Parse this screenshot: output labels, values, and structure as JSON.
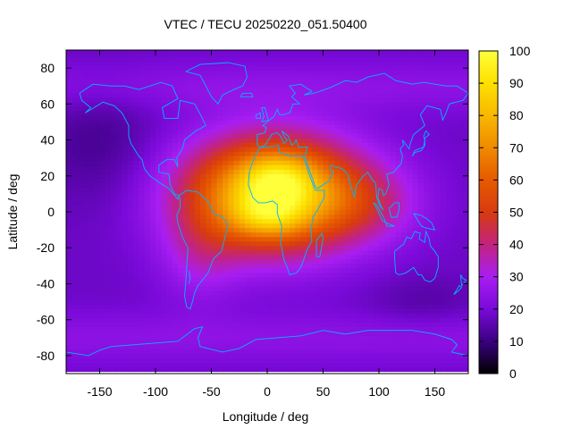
{
  "chart_data": {
    "type": "heatmap",
    "title": "VTEC / TECU 20250220_051.50400",
    "xlabel": "Longitude / deg",
    "ylabel": "Latitude / deg",
    "xlim": [
      -180,
      180
    ],
    "ylim": [
      -90,
      90
    ],
    "x_ticks": [
      -150,
      -100,
      -50,
      0,
      50,
      100,
      150
    ],
    "y_ticks": [
      -80,
      -60,
      -40,
      -20,
      0,
      20,
      40,
      60,
      80
    ],
    "colorbar": {
      "range": [
        0,
        100
      ],
      "ticks": [
        0,
        10,
        20,
        30,
        40,
        50,
        60,
        70,
        80,
        90,
        100
      ],
      "palette": [
        "#000000",
        "#3a0080",
        "#7a0ad9",
        "#a81ef2",
        "#c2237f",
        "#d83a10",
        "#e65a00",
        "#f08a00",
        "#f8b800",
        "#fde000",
        "#ffff3a"
      ]
    },
    "grid": {
      "lon_start": -180,
      "lon_step": 5,
      "lat_start": -87.5,
      "lat_step": 2.5,
      "background_tec": 18,
      "blobs": [
        {
          "lon": 5,
          "lat": 10,
          "sigma_lon": 55,
          "sigma_lat": 22,
          "tec": 72
        },
        {
          "lon": 10,
          "lat": 18,
          "sigma_lon": 22,
          "sigma_lat": 10,
          "tec": 18
        },
        {
          "lon": 0,
          "lat": -2,
          "sigma_lon": 22,
          "sigma_lat": 8,
          "tec": 16
        },
        {
          "lon": 90,
          "lat": 5,
          "sigma_lon": 35,
          "sigma_lat": 15,
          "tec": 12
        },
        {
          "lon": -60,
          "lat": -25,
          "sigma_lon": 25,
          "sigma_lat": 18,
          "tec": 10
        },
        {
          "lon": -150,
          "lat": 40,
          "sigma_lon": 40,
          "sigma_lat": 25,
          "tec": -6
        },
        {
          "lon": 140,
          "lat": -50,
          "sigma_lon": 35,
          "sigma_lat": 10,
          "tec": -4
        }
      ]
    }
  },
  "continents": [
    [
      [
        -168,
        66
      ],
      [
        -156,
        71
      ],
      [
        -140,
        70
      ],
      [
        -128,
        70
      ],
      [
        -115,
        68
      ],
      [
        -95,
        72
      ],
      [
        -85,
        70
      ],
      [
        -80,
        63
      ],
      [
        -94,
        58
      ],
      [
        -92,
        52
      ],
      [
        -80,
        52
      ],
      [
        -78,
        62
      ],
      [
        -65,
        60
      ],
      [
        -58,
        52
      ],
      [
        -55,
        48
      ],
      [
        -64,
        45
      ],
      [
        -70,
        42
      ],
      [
        -74,
        40
      ],
      [
        -76,
        35
      ],
      [
        -81,
        30
      ],
      [
        -80,
        25
      ],
      [
        -83,
        29
      ],
      [
        -90,
        29
      ],
      [
        -97,
        26
      ],
      [
        -97,
        22
      ],
      [
        -88,
        21
      ],
      [
        -87,
        15
      ],
      [
        -83,
        10
      ],
      [
        -79,
        9
      ],
      [
        -80,
        7
      ],
      [
        -88,
        13
      ],
      [
        -96,
        16
      ],
      [
        -105,
        20
      ],
      [
        -110,
        24
      ],
      [
        -112,
        29
      ],
      [
        -115,
        31
      ],
      [
        -117,
        33
      ],
      [
        -122,
        38
      ],
      [
        -124,
        42
      ],
      [
        -124,
        48
      ],
      [
        -130,
        55
      ],
      [
        -137,
        59
      ],
      [
        -147,
        61
      ],
      [
        -155,
        58
      ],
      [
        -163,
        55
      ],
      [
        -158,
        58
      ],
      [
        -166,
        62
      ],
      [
        -168,
        66
      ]
    ],
    [
      [
        -79,
        9
      ],
      [
        -72,
        12
      ],
      [
        -62,
        11
      ],
      [
        -52,
        5
      ],
      [
        -48,
        -1
      ],
      [
        -40,
        -3
      ],
      [
        -35,
        -7
      ],
      [
        -37,
        -12
      ],
      [
        -39,
        -17
      ],
      [
        -41,
        -22
      ],
      [
        -48,
        -26
      ],
      [
        -53,
        -34
      ],
      [
        -58,
        -38
      ],
      [
        -62,
        -41
      ],
      [
        -65,
        -45
      ],
      [
        -67,
        -50
      ],
      [
        -69,
        -54
      ],
      [
        -72,
        -53
      ],
      [
        -74,
        -47
      ],
      [
        -73,
        -40
      ],
      [
        -72,
        -30
      ],
      [
        -71,
        -20
      ],
      [
        -76,
        -14
      ],
      [
        -80,
        -6
      ],
      [
        -81,
        -2
      ],
      [
        -78,
        2
      ],
      [
        -78,
        7
      ],
      [
        -79,
        9
      ]
    ],
    [
      [
        -17,
        15
      ],
      [
        -16,
        22
      ],
      [
        -13,
        28
      ],
      [
        -9,
        33
      ],
      [
        -6,
        36
      ],
      [
        0,
        36
      ],
      [
        10,
        37
      ],
      [
        11,
        33
      ],
      [
        20,
        31
      ],
      [
        29,
        31
      ],
      [
        32,
        31
      ],
      [
        34,
        28
      ],
      [
        38,
        20
      ],
      [
        43,
        12
      ],
      [
        51,
        12
      ],
      [
        51,
        8
      ],
      [
        45,
        1
      ],
      [
        41,
        -3
      ],
      [
        39,
        -10
      ],
      [
        40,
        -16
      ],
      [
        35,
        -22
      ],
      [
        33,
        -26
      ],
      [
        30,
        -31
      ],
      [
        26,
        -34
      ],
      [
        20,
        -35
      ],
      [
        18,
        -31
      ],
      [
        15,
        -27
      ],
      [
        12,
        -17
      ],
      [
        13,
        -8
      ],
      [
        9,
        -1
      ],
      [
        9,
        4
      ],
      [
        5,
        6
      ],
      [
        -2,
        5
      ],
      [
        -8,
        5
      ],
      [
        -13,
        8
      ],
      [
        -17,
        15
      ]
    ],
    [
      [
        -9,
        37
      ],
      [
        -9,
        43
      ],
      [
        -2,
        44
      ],
      [
        -1,
        47
      ],
      [
        -4,
        48
      ],
      [
        2,
        51
      ],
      [
        6,
        53
      ],
      [
        9,
        57
      ],
      [
        11,
        54
      ],
      [
        14,
        54
      ],
      [
        20,
        55
      ],
      [
        23,
        60
      ],
      [
        29,
        60
      ],
      [
        22,
        64
      ],
      [
        25,
        66
      ],
      [
        20,
        70
      ],
      [
        30,
        71
      ],
      [
        40,
        67
      ],
      [
        33,
        65
      ],
      [
        42,
        66
      ],
      [
        56,
        69
      ],
      [
        70,
        73
      ],
      [
        80,
        72
      ],
      [
        90,
        75
      ],
      [
        105,
        77
      ],
      [
        115,
        73
      ],
      [
        130,
        71
      ],
      [
        140,
        72
      ],
      [
        160,
        70
      ],
      [
        170,
        70
      ],
      [
        180,
        66
      ],
      [
        175,
        62
      ],
      [
        163,
        60
      ],
      [
        160,
        55
      ],
      [
        157,
        51
      ],
      [
        155,
        57
      ],
      [
        143,
        59
      ],
      [
        137,
        54
      ],
      [
        141,
        48
      ],
      [
        131,
        43
      ],
      [
        128,
        38
      ],
      [
        127,
        35
      ],
      [
        121,
        40
      ],
      [
        122,
        37
      ],
      [
        119,
        35
      ],
      [
        121,
        31
      ],
      [
        120,
        27
      ],
      [
        113,
        22
      ],
      [
        107,
        21
      ],
      [
        109,
        15
      ],
      [
        106,
        10
      ],
      [
        104,
        9
      ],
      [
        103,
        12
      ],
      [
        100,
        13
      ],
      [
        99,
        8
      ],
      [
        102,
        3
      ],
      [
        104,
        1
      ],
      [
        101,
        3
      ],
      [
        98,
        8
      ],
      [
        97,
        16
      ],
      [
        94,
        18
      ],
      [
        90,
        22
      ],
      [
        86,
        20
      ],
      [
        80,
        15
      ],
      [
        78,
        8
      ],
      [
        73,
        18
      ],
      [
        72,
        21
      ],
      [
        67,
        24
      ],
      [
        61,
        25
      ],
      [
        57,
        26
      ],
      [
        56,
        24
      ],
      [
        59,
        22
      ],
      [
        55,
        17
      ],
      [
        45,
        13
      ],
      [
        43,
        14
      ],
      [
        39,
        21
      ],
      [
        35,
        28
      ],
      [
        34,
        31
      ],
      [
        36,
        36
      ],
      [
        28,
        36
      ],
      [
        26,
        40
      ],
      [
        24,
        38
      ],
      [
        22,
        37
      ],
      [
        20,
        40
      ],
      [
        19,
        42
      ],
      [
        13,
        45
      ],
      [
        16,
        41
      ],
      [
        18,
        40
      ],
      [
        15,
        38
      ],
      [
        12,
        42
      ],
      [
        9,
        44
      ],
      [
        4,
        43
      ],
      [
        0,
        39
      ],
      [
        -2,
        37
      ],
      [
        -6,
        36
      ],
      [
        -9,
        37
      ]
    ],
    [
      [
        114,
        -22
      ],
      [
        114,
        -26
      ],
      [
        115,
        -34
      ],
      [
        118,
        -35
      ],
      [
        124,
        -34
      ],
      [
        131,
        -31
      ],
      [
        135,
        -35
      ],
      [
        138,
        -35
      ],
      [
        141,
        -38
      ],
      [
        146,
        -39
      ],
      [
        150,
        -37
      ],
      [
        153,
        -31
      ],
      [
        153,
        -25
      ],
      [
        150,
        -22
      ],
      [
        146,
        -19
      ],
      [
        145,
        -15
      ],
      [
        142,
        -11
      ],
      [
        141,
        -17
      ],
      [
        136,
        -15
      ],
      [
        137,
        -12
      ],
      [
        132,
        -11
      ],
      [
        129,
        -15
      ],
      [
        125,
        -14
      ],
      [
        122,
        -18
      ],
      [
        114,
        -22
      ]
    ],
    [
      [
        -73,
        78
      ],
      [
        -60,
        82
      ],
      [
        -35,
        83
      ],
      [
        -20,
        81
      ],
      [
        -18,
        75
      ],
      [
        -22,
        70
      ],
      [
        -30,
        68
      ],
      [
        -40,
        65
      ],
      [
        -44,
        60
      ],
      [
        -50,
        64
      ],
      [
        -55,
        70
      ],
      [
        -60,
        76
      ],
      [
        -73,
        78
      ]
    ],
    [
      [
        -5,
        50
      ],
      [
        -3,
        53
      ],
      [
        -5,
        58
      ],
      [
        -2,
        58
      ],
      [
        0,
        53
      ],
      [
        1,
        51
      ],
      [
        -5,
        50
      ]
    ],
    [
      [
        -10,
        52
      ],
      [
        -10,
        54
      ],
      [
        -6,
        55
      ],
      [
        -6,
        52
      ],
      [
        -10,
        52
      ]
    ],
    [
      [
        -24,
        64
      ],
      [
        -22,
        66
      ],
      [
        -14,
        66
      ],
      [
        -13,
        64
      ],
      [
        -24,
        64
      ]
    ],
    [
      [
        130,
        31
      ],
      [
        132,
        34
      ],
      [
        136,
        35
      ],
      [
        140,
        36
      ],
      [
        141,
        40
      ],
      [
        140,
        42
      ],
      [
        142,
        45
      ],
      [
        145,
        43
      ],
      [
        141,
        41
      ],
      [
        141,
        37
      ],
      [
        138,
        34
      ],
      [
        132,
        33
      ],
      [
        130,
        31
      ]
    ],
    [
      [
        44,
        -25
      ],
      [
        47,
        -25
      ],
      [
        50,
        -15
      ],
      [
        49,
        -12
      ],
      [
        44,
        -16
      ],
      [
        44,
        -25
      ]
    ],
    [
      [
        95,
        5
      ],
      [
        98,
        4
      ],
      [
        104,
        -3
      ],
      [
        106,
        -6
      ],
      [
        103,
        -5
      ],
      [
        98,
        2
      ],
      [
        95,
        5
      ]
    ],
    [
      [
        106,
        -6
      ],
      [
        110,
        -7
      ],
      [
        114,
        -8
      ],
      [
        107,
        -8
      ],
      [
        106,
        -6
      ]
    ],
    [
      [
        109,
        2
      ],
      [
        111,
        3
      ],
      [
        114,
        5
      ],
      [
        118,
        5
      ],
      [
        118,
        1
      ],
      [
        116,
        -3
      ],
      [
        111,
        -3
      ],
      [
        109,
        2
      ]
    ],
    [
      [
        131,
        -1
      ],
      [
        138,
        -2
      ],
      [
        143,
        -4
      ],
      [
        147,
        -6
      ],
      [
        150,
        -10
      ],
      [
        142,
        -9
      ],
      [
        138,
        -8
      ],
      [
        131,
        -1
      ]
    ],
    [
      [
        173,
        -35
      ],
      [
        175,
        -37
      ],
      [
        178,
        -38
      ],
      [
        174,
        -41
      ],
      [
        173,
        -35
      ]
    ],
    [
      [
        167,
        -46
      ],
      [
        172,
        -41
      ],
      [
        174,
        -42
      ],
      [
        171,
        -44
      ],
      [
        167,
        -46
      ]
    ],
    [
      [
        -180,
        -78
      ],
      [
        -160,
        -80
      ],
      [
        -150,
        -77
      ],
      [
        -140,
        -75
      ],
      [
        -120,
        -74
      ],
      [
        -100,
        -73
      ],
      [
        -80,
        -72
      ],
      [
        -65,
        -65
      ],
      [
        -58,
        -64
      ],
      [
        -62,
        -70
      ],
      [
        -60,
        -75
      ],
      [
        -40,
        -78
      ],
      [
        -25,
        -76
      ],
      [
        -10,
        -71
      ],
      [
        10,
        -70
      ],
      [
        30,
        -69
      ],
      [
        50,
        -66
      ],
      [
        70,
        -68
      ],
      [
        90,
        -66
      ],
      [
        110,
        -66
      ],
      [
        130,
        -66
      ],
      [
        150,
        -68
      ],
      [
        165,
        -71
      ],
      [
        170,
        -74
      ],
      [
        165,
        -78
      ],
      [
        180,
        -80
      ]
    ],
    [
      [
        -70,
        -33
      ],
      [
        -69,
        -37
      ],
      [
        -70,
        -40
      ]
    ]
  ]
}
